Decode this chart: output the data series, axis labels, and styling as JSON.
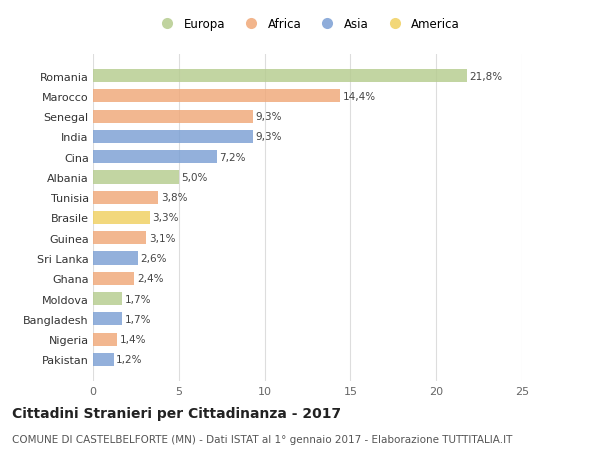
{
  "countries": [
    "Romania",
    "Marocco",
    "Senegal",
    "India",
    "Cina",
    "Albania",
    "Tunisia",
    "Brasile",
    "Guinea",
    "Sri Lanka",
    "Ghana",
    "Moldova",
    "Bangladesh",
    "Nigeria",
    "Pakistan"
  ],
  "values": [
    21.8,
    14.4,
    9.3,
    9.3,
    7.2,
    5.0,
    3.8,
    3.3,
    3.1,
    2.6,
    2.4,
    1.7,
    1.7,
    1.4,
    1.2
  ],
  "labels": [
    "21,8%",
    "14,4%",
    "9,3%",
    "9,3%",
    "7,2%",
    "5,0%",
    "3,8%",
    "3,3%",
    "3,1%",
    "2,6%",
    "2,4%",
    "1,7%",
    "1,7%",
    "1,4%",
    "1,2%"
  ],
  "continents": [
    "Europa",
    "Africa",
    "Africa",
    "Asia",
    "Asia",
    "Europa",
    "Africa",
    "America",
    "Africa",
    "Asia",
    "Africa",
    "Europa",
    "Asia",
    "Africa",
    "Asia"
  ],
  "colors": {
    "Europa": "#b5cc8e",
    "Africa": "#f0a878",
    "Asia": "#7b9fd4",
    "America": "#f0d060"
  },
  "legend_order": [
    "Europa",
    "Africa",
    "Asia",
    "America"
  ],
  "xlim": [
    0,
    25
  ],
  "xticks": [
    0,
    5,
    10,
    15,
    20,
    25
  ],
  "title": "Cittadini Stranieri per Cittadinanza - 2017",
  "subtitle": "COMUNE DI CASTELBELFORTE (MN) - Dati ISTAT al 1° gennaio 2017 - Elaborazione TUTTITALIA.IT",
  "bg_color": "#ffffff",
  "grid_color": "#dddddd",
  "bar_height": 0.65,
  "title_fontsize": 10,
  "subtitle_fontsize": 7.5,
  "label_fontsize": 7.5,
  "tick_fontsize": 8,
  "legend_fontsize": 8.5
}
